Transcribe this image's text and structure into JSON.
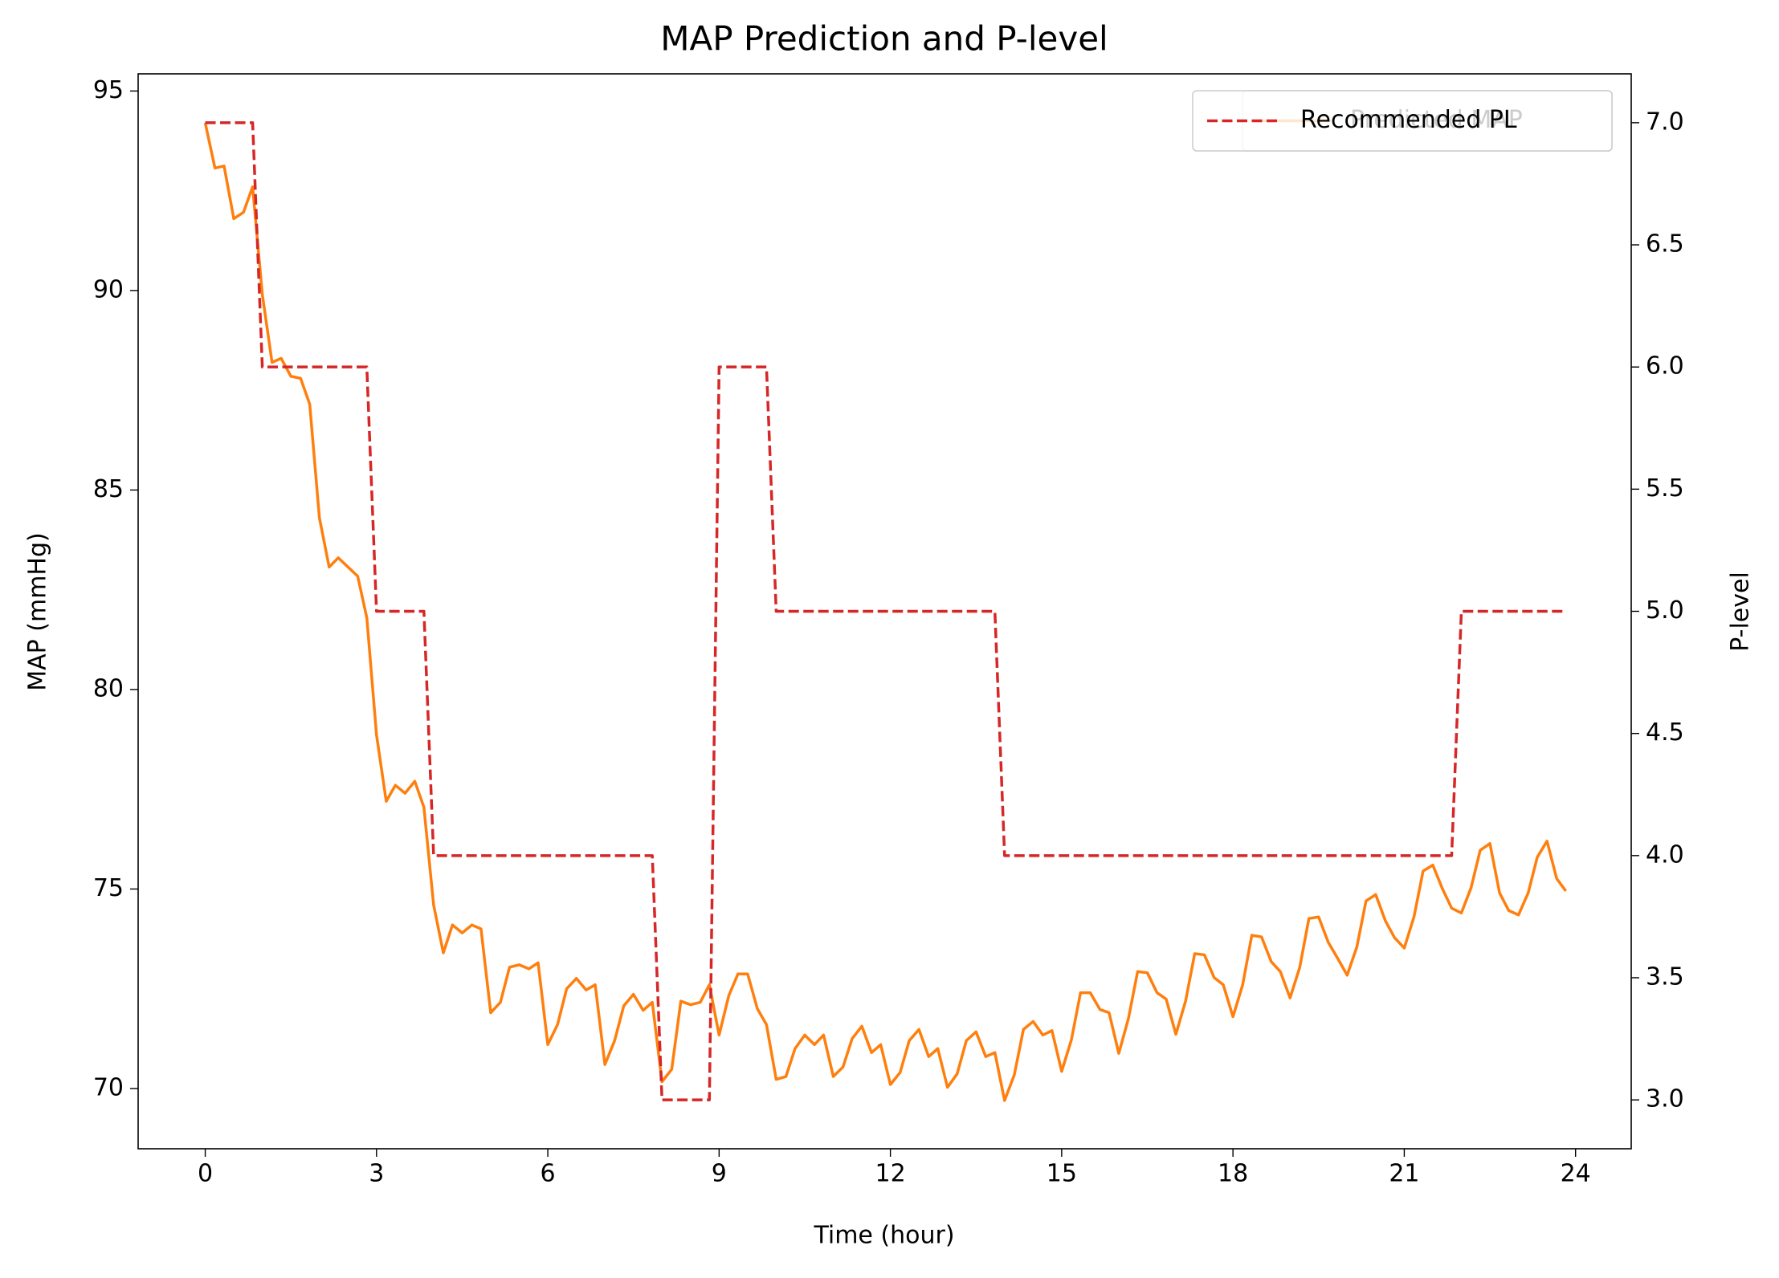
{
  "chart_data": {
    "type": "line",
    "title": "MAP Prediction and P-level",
    "x_label": "Time (hour)",
    "y_label": "MAP (mmHg)",
    "y2_label": "P-level",
    "x": [
      0,
      0.17,
      0.33,
      0.5,
      0.67,
      0.83,
      1,
      1.17,
      1.33,
      1.5,
      1.67,
      1.83,
      2,
      2.17,
      2.33,
      2.5,
      2.67,
      2.83,
      3,
      3.17,
      3.33,
      3.5,
      3.67,
      3.83,
      4,
      4.17,
      4.33,
      4.5,
      4.67,
      4.83,
      5,
      5.17,
      5.33,
      5.5,
      5.67,
      5.83,
      6,
      6.17,
      6.33,
      6.5,
      6.67,
      6.83,
      7,
      7.17,
      7.33,
      7.5,
      7.67,
      7.83,
      8,
      8.17,
      8.33,
      8.5,
      8.67,
      8.83,
      9,
      9.17,
      9.33,
      9.5,
      9.67,
      9.83,
      10,
      10.17,
      10.33,
      10.5,
      10.67,
      10.83,
      11,
      11.17,
      11.33,
      11.5,
      11.67,
      11.83,
      12,
      12.17,
      12.33,
      12.5,
      12.67,
      12.83,
      13,
      13.17,
      13.33,
      13.5,
      13.67,
      13.83,
      14,
      14.17,
      14.33,
      14.5,
      14.67,
      14.83,
      15,
      15.17,
      15.33,
      15.5,
      15.67,
      15.83,
      16,
      16.17,
      16.33,
      16.5,
      16.67,
      16.83,
      17,
      17.17,
      17.33,
      17.5,
      17.67,
      17.83,
      18,
      18.17,
      18.33,
      18.5,
      18.67,
      18.83,
      19,
      19.17,
      19.33,
      19.5,
      19.67,
      19.83,
      20,
      20.17,
      20.33,
      20.5,
      20.67,
      20.83,
      21,
      21.17,
      21.33,
      21.5,
      21.67,
      21.83,
      22,
      22.17,
      22.33,
      22.5,
      22.67,
      22.83,
      23,
      23.17,
      23.33,
      23.5,
      23.67,
      23.83
    ],
    "series": [
      {
        "name": "Predicted MAP",
        "color": "#ff7f0e",
        "dashed": false,
        "values": [
          94.2,
          93.07,
          93.12,
          91.8,
          91.96,
          92.6,
          89.9,
          88.2,
          88.3,
          87.85,
          87.8,
          87.15,
          84.3,
          83.07,
          83.3,
          83.07,
          82.84,
          81.8,
          78.86,
          77.2,
          77.6,
          77.4,
          77.7,
          77.05,
          74.6,
          73.4,
          74.1,
          73.9,
          74.1,
          74.0,
          71.9,
          72.16,
          73.04,
          73.1,
          73.0,
          73.15,
          71.1,
          71.6,
          72.5,
          72.76,
          72.47,
          72.6,
          70.6,
          71.2,
          72.07,
          72.36,
          71.96,
          72.16,
          70.17,
          70.48,
          72.19,
          72.1,
          72.16,
          72.6,
          71.34,
          72.33,
          72.87,
          72.87,
          72.0,
          71.6,
          70.23,
          70.3,
          71.0,
          71.34,
          71.1,
          71.34,
          70.3,
          70.54,
          71.25,
          71.56,
          70.9,
          71.1,
          70.1,
          70.4,
          71.2,
          71.48,
          70.8,
          71.0,
          70.03,
          70.37,
          71.2,
          71.42,
          70.8,
          70.9,
          69.7,
          70.34,
          71.48,
          71.68,
          71.34,
          71.45,
          70.43,
          71.22,
          72.4,
          72.4,
          71.98,
          71.9,
          70.88,
          71.76,
          72.93,
          72.9,
          72.4,
          72.24,
          71.36,
          72.19,
          73.38,
          73.35,
          72.78,
          72.6,
          71.8,
          72.6,
          73.84,
          73.8,
          73.18,
          72.93,
          72.27,
          73.04,
          74.26,
          74.3,
          73.66,
          73.27,
          72.84,
          73.55,
          74.7,
          74.86,
          74.2,
          73.78,
          73.52,
          74.3,
          75.45,
          75.6,
          75.0,
          74.52,
          74.4,
          75.03,
          75.97,
          76.14,
          74.9,
          74.46,
          74.35,
          74.9,
          75.8,
          76.2,
          75.26,
          74.95
        ]
      },
      {
        "name": "Recommended PL",
        "color": "#d62728",
        "dashed": true,
        "axis": "y2",
        "values": [
          7,
          7,
          7,
          7,
          7,
          7,
          6,
          6,
          6,
          6,
          6,
          6,
          6,
          6,
          6,
          6,
          6,
          6,
          5,
          5,
          5,
          5,
          5,
          5,
          4,
          4,
          4,
          4,
          4,
          4,
          4,
          4,
          4,
          4,
          4,
          4,
          4,
          4,
          4,
          4,
          4,
          4,
          4,
          4,
          4,
          4,
          4,
          4,
          3,
          3,
          3,
          3,
          3,
          3,
          6,
          6,
          6,
          6,
          6,
          6,
          5,
          5,
          5,
          5,
          5,
          5,
          5,
          5,
          5,
          5,
          5,
          5,
          5,
          5,
          5,
          5,
          5,
          5,
          5,
          5,
          5,
          5,
          5,
          5,
          4,
          4,
          4,
          4,
          4,
          4,
          4,
          4,
          4,
          4,
          4,
          4,
          4,
          4,
          4,
          4,
          4,
          4,
          4,
          4,
          4,
          4,
          4,
          4,
          4,
          4,
          4,
          4,
          4,
          4,
          4,
          4,
          4,
          4,
          4,
          4,
          4,
          4,
          4,
          4,
          4,
          4,
          4,
          4,
          4,
          4,
          4,
          4,
          5,
          5,
          5,
          5,
          5,
          5,
          5,
          5,
          5,
          5,
          5,
          5
        ]
      }
    ],
    "xlim": [
      -1.175,
      24.975
    ],
    "xticks": [
      0,
      3,
      6,
      9,
      12,
      15,
      18,
      21,
      24
    ],
    "ylim": [
      68.49,
      95.43
    ],
    "yticks": [
      70,
      75,
      80,
      85,
      90,
      95
    ],
    "y2lim": [
      2.8,
      7.2
    ],
    "y2ticks": [
      {
        "value": 3,
        "label": "3.0"
      },
      3.5,
      {
        "value": 4,
        "label": "4.0"
      },
      4.5,
      {
        "value": 5,
        "label": "5.0"
      },
      5.5,
      {
        "value": 6,
        "label": "6.0"
      },
      6.5,
      {
        "value": 7,
        "label": "7.0"
      }
    ],
    "grid": false,
    "legend": "upper right"
  }
}
